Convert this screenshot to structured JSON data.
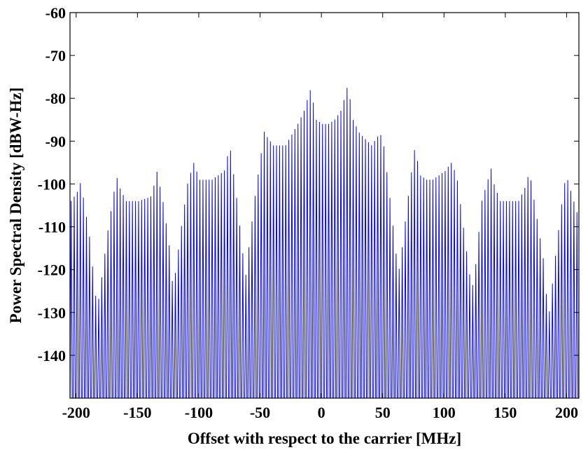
{
  "chart_data": {
    "type": "line",
    "title": "",
    "xlabel": "Offset with respect to the carrier [MHz]",
    "ylabel": "Power Spectral Density [dBW-Hz]",
    "xlim": [
      -205,
      210
    ],
    "ylim": [
      -150,
      -60
    ],
    "xticks": [
      -200,
      -150,
      -100,
      -50,
      0,
      50,
      100,
      150,
      200
    ],
    "yticks": [
      -60,
      -70,
      -80,
      -90,
      -100,
      -110,
      -120,
      -130,
      -140
    ],
    "grid": false,
    "legend": "none",
    "series": [
      {
        "color": "#0000ff",
        "line_spacing_mhz": 2.5,
        "line_floor": -150,
        "envelope": {
          "x": [
            -205,
            -200,
            -198,
            -195,
            -190,
            -185,
            -183,
            -180,
            -175,
            -170,
            -168,
            -165,
            -160,
            -150,
            -140,
            -137,
            -135,
            -130,
            -125,
            -122,
            -120,
            -115,
            -110,
            -107,
            -105,
            -100,
            -90,
            -80,
            -77,
            -75,
            -70,
            -65,
            -62,
            -60,
            -55,
            -50,
            -47,
            -45,
            -40,
            -30,
            -20,
            -15,
            -12,
            -10,
            -8,
            -5,
            0,
            5,
            10,
            15,
            18,
            20,
            22,
            25,
            30,
            40,
            45,
            47,
            50,
            55,
            60,
            62,
            65,
            70,
            75,
            78,
            80,
            85,
            90,
            100,
            105,
            108,
            110,
            115,
            120,
            123,
            125,
            130,
            135,
            138,
            140,
            145,
            150,
            160,
            165,
            168,
            170,
            175,
            180,
            183,
            185,
            190,
            195,
            197,
            200,
            205,
            208,
            210
          ],
          "y": [
            -104,
            -102,
            -99,
            -103,
            -112,
            -126,
            -128,
            -122,
            -111,
            -102,
            -98,
            -101,
            -104,
            -104,
            -103,
            -100,
            -97,
            -104,
            -114,
            -124,
            -121,
            -110,
            -100,
            -97,
            -95,
            -99,
            -99,
            -97,
            -93,
            -92,
            -103,
            -116,
            -122,
            -115,
            -103,
            -93,
            -87,
            -89,
            -91,
            -91,
            -86,
            -83,
            -80,
            -78,
            -80,
            -85,
            -86,
            -86,
            -85,
            -83,
            -80,
            -77.5,
            -79,
            -85,
            -88,
            -91,
            -89,
            -88,
            -91,
            -103,
            -116,
            -121,
            -115,
            -103,
            -92,
            -95,
            -98,
            -99,
            -99,
            -97,
            -95,
            -97,
            -99,
            -110,
            -121,
            -124,
            -119,
            -104,
            -99,
            -96,
            -100,
            -104,
            -104,
            -104,
            -101,
            -98,
            -99,
            -108,
            -117,
            -127,
            -130,
            -117,
            -105,
            -100,
            -99,
            -104,
            -107,
            -109
          ]
        }
      }
    ]
  }
}
